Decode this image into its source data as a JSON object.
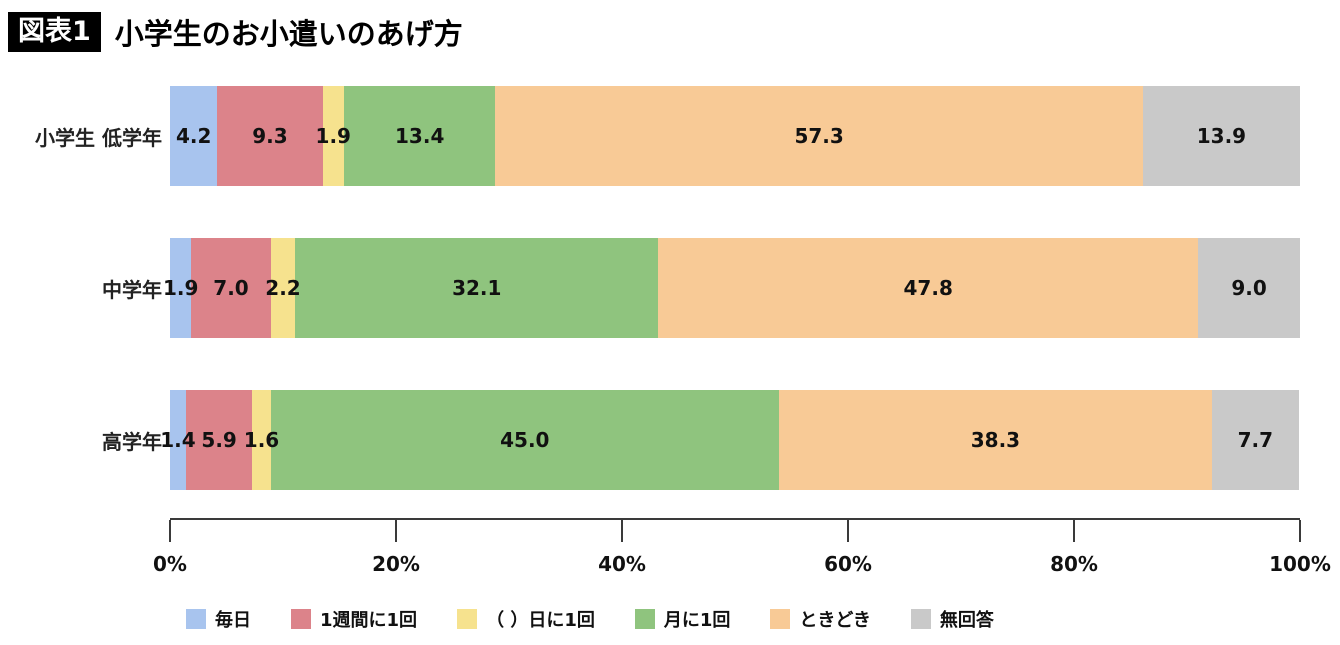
{
  "header": {
    "badge": "図表1",
    "title": "小学生のお小遣いのあげ方"
  },
  "chart_data": {
    "type": "bar",
    "stacked": true,
    "orientation": "horizontal",
    "title": "小学生のお小遣いのあげ方",
    "categories": [
      "小学生 低学年",
      "中学年",
      "高学年"
    ],
    "series": [
      {
        "name": "毎日",
        "color": "#a8c4ee",
        "values": [
          4.2,
          1.9,
          1.4
        ]
      },
      {
        "name": "1週間に1回",
        "color": "#dc838a",
        "values": [
          9.3,
          7.0,
          5.9
        ]
      },
      {
        "name": "（ ）日に1回",
        "color": "#f6e28e",
        "values": [
          1.9,
          2.2,
          1.6
        ]
      },
      {
        "name": "月に1回",
        "color": "#8fc47e",
        "values": [
          13.4,
          32.1,
          45.0
        ]
      },
      {
        "name": "ときどき",
        "color": "#f8ca96",
        "values": [
          57.3,
          47.8,
          38.3
        ]
      },
      {
        "name": "無回答",
        "color": "#c9c9c9",
        "values": [
          13.9,
          9.0,
          7.7
        ]
      }
    ],
    "xlim": [
      0,
      100
    ],
    "x_ticks": [
      {
        "pos": 0,
        "label": "0%"
      },
      {
        "pos": 20,
        "label": "20%"
      },
      {
        "pos": 40,
        "label": "40%"
      },
      {
        "pos": 60,
        "label": "60%"
      },
      {
        "pos": 80,
        "label": "80%"
      },
      {
        "pos": 100,
        "label": "100%"
      }
    ],
    "grid": false,
    "legend_position": "bottom",
    "value_label_format": "one_decimal"
  }
}
